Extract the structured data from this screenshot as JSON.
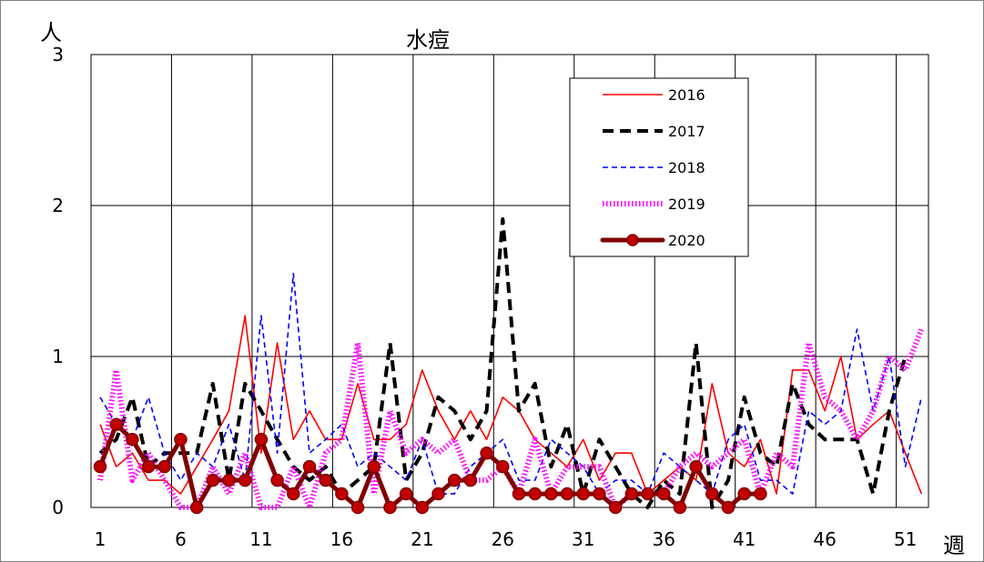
{
  "chart_data": {
    "type": "line",
    "title": "水痘",
    "ylabel": "人",
    "xlabel": "週",
    "ylim": [
      0,
      3
    ],
    "xlim": [
      1,
      53
    ],
    "yticks": [
      0,
      1,
      2,
      3
    ],
    "xticks": [
      1,
      6,
      11,
      16,
      21,
      26,
      31,
      36,
      41,
      46,
      51
    ],
    "grid": true,
    "legend_position": "top-right",
    "series": [
      {
        "name": "2016",
        "color": "#ff0000",
        "style": "solid-thin",
        "values": [
          0.55,
          0.27,
          0.36,
          0.18,
          0.18,
          0.09,
          0.27,
          0.45,
          0.64,
          1.27,
          0.36,
          1.09,
          0.45,
          0.64,
          0.45,
          0.45,
          0.82,
          0.45,
          0.45,
          0.55,
          0.91,
          0.64,
          0.45,
          0.64,
          0.45,
          0.73,
          0.64,
          0.45,
          0.36,
          0.27,
          0.45,
          0.18,
          0.36,
          0.36,
          0.09,
          0.18,
          0.27,
          0.18,
          0.82,
          0.36,
          0.27,
          0.45,
          0.09,
          0.91,
          0.91,
          0.64,
          1.0,
          0.45,
          0.55,
          0.64,
          0.36,
          0.09
        ]
      },
      {
        "name": "2017",
        "color": "#000000",
        "style": "dashed-thick",
        "values": [
          0.36,
          0.45,
          0.73,
          0.27,
          0.36,
          0.36,
          0.36,
          0.82,
          0.18,
          0.82,
          0.64,
          0.45,
          0.27,
          0.18,
          0.27,
          0.09,
          0.18,
          0.27,
          1.09,
          0.18,
          0.36,
          0.73,
          0.64,
          0.45,
          0.64,
          1.91,
          0.64,
          0.82,
          0.27,
          0.55,
          0.09,
          0.45,
          0.27,
          0.09,
          0.0,
          0.18,
          0.09,
          1.09,
          0.0,
          0.18,
          0.73,
          0.36,
          0.27,
          0.82,
          0.55,
          0.45,
          0.45,
          0.45,
          0.09,
          0.64,
          1.0
        ]
      },
      {
        "name": "2018",
        "color": "#0000ff",
        "style": "dashed-thin",
        "values": [
          0.73,
          0.55,
          0.45,
          0.73,
          0.36,
          0.18,
          0.36,
          0.27,
          0.55,
          0.18,
          1.27,
          0.36,
          1.55,
          0.36,
          0.45,
          0.55,
          0.27,
          0.36,
          0.27,
          0.18,
          0.45,
          0.09,
          0.09,
          0.27,
          0.36,
          0.45,
          0.18,
          0.18,
          0.45,
          0.36,
          0.27,
          0.09,
          0.18,
          0.18,
          0.09,
          0.36,
          0.27,
          0.18,
          0.09,
          0.45,
          0.55,
          0.18,
          0.18,
          0.09,
          0.64,
          0.55,
          0.64,
          1.18,
          0.64,
          1.0,
          0.27,
          0.73
        ]
      },
      {
        "name": "2019",
        "color": "#ff00ff",
        "style": "dotted-thick",
        "values": [
          0.18,
          0.91,
          0.18,
          0.36,
          0.18,
          0.0,
          0.0,
          0.27,
          0.09,
          0.36,
          0.0,
          0.0,
          0.27,
          0.0,
          0.36,
          0.45,
          1.09,
          0.09,
          0.64,
          0.36,
          0.45,
          0.36,
          0.45,
          0.18,
          0.18,
          0.27,
          0.09,
          0.45,
          0.09,
          0.27,
          0.27,
          0.27,
          0.0,
          0.09,
          0.09,
          0.09,
          0.27,
          0.36,
          0.27,
          0.36,
          0.45,
          0.09,
          0.36,
          0.27,
          1.09,
          0.73,
          0.64,
          0.45,
          0.64,
          1.0,
          0.91,
          1.18
        ]
      },
      {
        "name": "2020",
        "color": "#800000",
        "style": "solid-marker",
        "values": [
          0.27,
          0.55,
          0.45,
          0.27,
          0.27,
          0.45,
          0.0,
          0.18,
          0.18,
          0.18,
          0.45,
          0.18,
          0.09,
          0.27,
          0.18,
          0.09,
          0.0,
          0.27,
          0.0,
          0.09,
          0.0,
          0.09,
          0.18,
          0.18,
          0.36,
          0.27,
          0.09,
          0.09,
          0.09,
          0.09,
          0.09,
          0.09,
          0.0,
          0.09,
          0.09,
          0.09,
          0.0,
          0.27,
          0.09,
          0.0,
          0.09,
          0.09
        ]
      }
    ]
  }
}
